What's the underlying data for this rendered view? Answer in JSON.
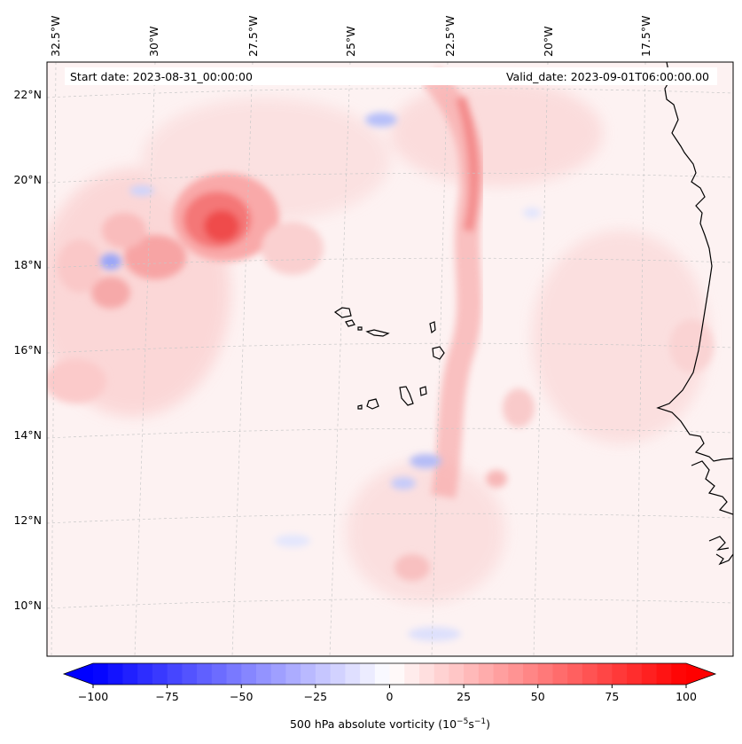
{
  "header": {
    "start_label": "Start date: 2023-08-31_00:00:00",
    "valid_label": "Valid_date: 2023-09-01T06:00:00.00"
  },
  "map": {
    "lon_ticks": [
      "32.5°W",
      "30°W",
      "27.5°W",
      "25°W",
      "22.5°W",
      "20°W",
      "17.5°W"
    ],
    "lat_ticks": [
      "22°N",
      "20°N",
      "18°N",
      "16°N",
      "14°N",
      "12°N",
      "10°N"
    ],
    "field_colors": {
      "positive": "#ff0000",
      "negative": "#0000ff",
      "neutral": "#ffffff",
      "coastline": "#000000"
    }
  },
  "colorbar": {
    "tick_labels": [
      "−100",
      "−75",
      "−50",
      "−25",
      "0",
      "25",
      "50",
      "75",
      "100"
    ],
    "label_prefix": "500 hPa absolute vorticity (10",
    "label_exp1": "−5",
    "label_mid": "s",
    "label_exp2": "−1",
    "label_suffix": ")",
    "min": -100,
    "max": 100
  }
}
